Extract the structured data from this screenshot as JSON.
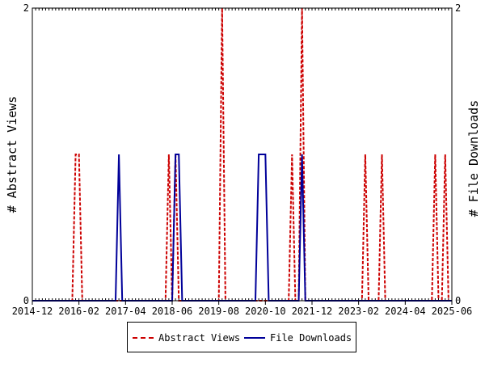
{
  "chart_data": {
    "type": "line",
    "title": "",
    "ylabel_left": "# Abstract Views",
    "ylabel_right": "# File Downloads",
    "xlabel": "",
    "x_tick_labels": [
      "2014-12",
      "2016-02",
      "2017-04",
      "2018-06",
      "2019-08",
      "2020-10",
      "2021-12",
      "2023-02",
      "2024-04",
      "2025-06"
    ],
    "x_range": [
      "2014-12",
      "2025-06"
    ],
    "ylim_left": [
      0,
      2
    ],
    "ylim_right": [
      0,
      2
    ],
    "y_tick_labels_left": [
      "0",
      "2"
    ],
    "y_tick_labels_right": [
      "0",
      "2"
    ],
    "grid": false,
    "legend_position": "bottom",
    "series": [
      {
        "name": "Abstract Views",
        "axis": "left",
        "color": "#cc0000",
        "style": "dashed",
        "points": [
          {
            "x": "2016-01",
            "y": 1
          },
          {
            "x": "2016-02",
            "y": 1
          },
          {
            "x": "2018-05",
            "y": 1
          },
          {
            "x": "2018-07",
            "y": 1
          },
          {
            "x": "2019-09",
            "y": 2
          },
          {
            "x": "2021-06",
            "y": 1
          },
          {
            "x": "2021-09",
            "y": 2
          },
          {
            "x": "2023-04",
            "y": 1
          },
          {
            "x": "2023-09",
            "y": 1
          },
          {
            "x": "2025-01",
            "y": 1
          },
          {
            "x": "2025-04",
            "y": 1
          }
        ]
      },
      {
        "name": "File Downloads",
        "axis": "right",
        "color": "#000099",
        "style": "solid",
        "points": [
          {
            "x": "2017-02",
            "y": 1
          },
          {
            "x": "2018-07",
            "y": 1
          },
          {
            "x": "2018-08",
            "y": 1
          },
          {
            "x": "2020-08",
            "y": 1
          },
          {
            "x": "2020-09",
            "y": 1
          },
          {
            "x": "2020-10",
            "y": 1
          },
          {
            "x": "2021-09",
            "y": 1
          }
        ]
      }
    ]
  },
  "legend": {
    "items": [
      {
        "label": "Abstract Views",
        "color": "#cc0000",
        "style": "dashed"
      },
      {
        "label": "File Downloads",
        "color": "#000099",
        "style": "solid"
      }
    ]
  }
}
